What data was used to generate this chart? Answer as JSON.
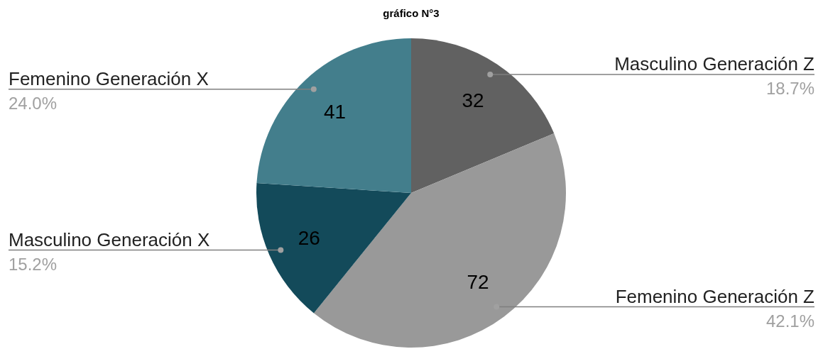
{
  "chart_data": {
    "type": "pie",
    "title": "gráfico N°3",
    "categories": [
      "Masculino Generación Z",
      "Femenino Generación Z",
      "Masculino Generación X",
      "Femenino Generación X"
    ],
    "values": [
      32,
      72,
      26,
      41
    ],
    "colors": [
      "#616161",
      "#999999",
      "#134a5a",
      "#437e8c"
    ],
    "data_labels": true,
    "annotations": [
      "18.7%",
      "42.1%",
      "15.2%",
      "24.0%"
    ]
  }
}
